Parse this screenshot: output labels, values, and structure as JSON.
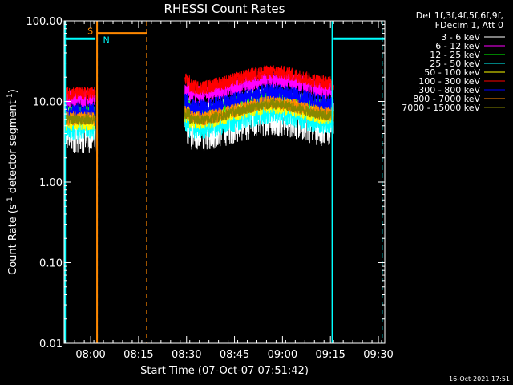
{
  "chart_data": {
    "type": "line",
    "title": "RHESSI Count Rates",
    "xlabel": "Start Time (07-Oct-07 07:51:42)",
    "ylabel_main": "Count Rate (s",
    "ylabel_sup": "-1",
    "ylabel_rest": " detector segment",
    "ylabel_sup2": "-1",
    "ylabel_end": ")",
    "yscale": "log",
    "ylim": [
      0.01,
      100
    ],
    "xlim_minutes": [
      471.7,
      572
    ],
    "x_ticks": [
      {
        "label": "08:00",
        "min": 480
      },
      {
        "label": "08:15",
        "min": 495
      },
      {
        "label": "08:30",
        "min": 510
      },
      {
        "label": "08:45",
        "min": 525
      },
      {
        "label": "09:00",
        "min": 540
      },
      {
        "label": "09:15",
        "min": 555
      },
      {
        "label": "09:30",
        "min": 570
      }
    ],
    "y_ticks": [
      {
        "label": "100.00",
        "v": 100
      },
      {
        "label": "10.00",
        "v": 10
      },
      {
        "label": "1.00",
        "v": 1
      },
      {
        "label": "0.10",
        "v": 0.1
      },
      {
        "label": "0.01",
        "v": 0.01
      }
    ],
    "legend_header": [
      "Det 1f,3f,4f,5f,6f,9f,",
      "FDecim 1, Att 0"
    ],
    "series": [
      {
        "name": "3 - 6 keV",
        "color": "#ffffff",
        "seg1": 4.6,
        "seg2": 5.2,
        "noise": 0.14
      },
      {
        "name": "6 - 12 keV",
        "color": "#ff00ff",
        "seg1": 11.0,
        "seg2": 13.0,
        "noise": 0.05
      },
      {
        "name": "12 - 25 keV",
        "color": "#00ff00",
        "seg1": 6.8,
        "seg2": 7.6,
        "noise": 0.05
      },
      {
        "name": "25 - 50 keV",
        "color": "#00ffff",
        "seg1": 5.0,
        "seg2": 5.4,
        "noise": 0.08
      },
      {
        "name": "50 - 100 keV",
        "color": "#ffff00",
        "seg1": 5.6,
        "seg2": 6.2,
        "noise": 0.05
      },
      {
        "name": "100 - 300 keV",
        "color": "#ff0000",
        "seg1": 12.5,
        "seg2": 16.0,
        "noise": 0.04
      },
      {
        "name": "300 - 800 keV",
        "color": "#0000ff",
        "seg1": 7.5,
        "seg2": 8.8,
        "noise": 0.05
      },
      {
        "name": "800 - 7000 keV",
        "color": "#ff8800",
        "seg1": 6.1,
        "seg2": 6.6,
        "noise": 0.04
      },
      {
        "name": "7000 - 15000 keV",
        "color": "#888800",
        "seg1": 6.0,
        "seg2": 6.3,
        "noise": 0.03
      }
    ],
    "data_segments_minutes": [
      [
        471.7,
        481.5
      ],
      [
        509.5,
        556
      ]
    ],
    "annotations": {
      "night_label": "N",
      "saa_label": "S",
      "night_color": "#00ffff",
      "saa_color": "#ff8800",
      "night_bars": [
        [
          471.7,
          481.5,
          60
        ],
        [
          556,
          572,
          60
        ]
      ],
      "night_solid_lines": [
        472.0,
        555.6
      ],
      "night_dashed_lines": [
        482.6,
        571.2
      ],
      "saa_bar": [
        482.0,
        497.5,
        70
      ],
      "saa_solid_line": 482.0,
      "saa_dashed_line": 497.5
    },
    "timestamp": "16-Oct-2021 17:51"
  }
}
